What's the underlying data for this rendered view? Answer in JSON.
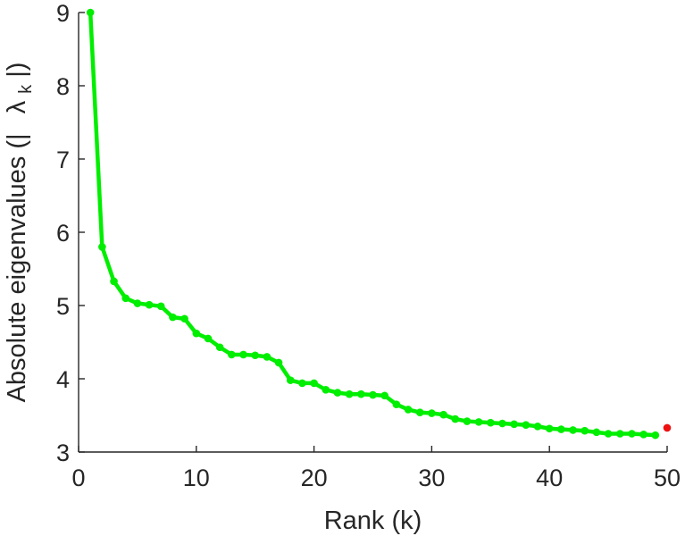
{
  "chart_data": {
    "type": "line",
    "title": "",
    "xlabel": "Rank (k)",
    "ylabel_parts": [
      "Absolute eigenvalues (|",
      "λ",
      "k",
      "|)"
    ],
    "xlim": [
      0,
      50
    ],
    "ylim": [
      3,
      9
    ],
    "xticks": [
      0,
      10,
      20,
      30,
      40,
      50
    ],
    "yticks": [
      3,
      4,
      5,
      6,
      7,
      8,
      9
    ],
    "grid": false,
    "legend": "none",
    "series": [
      {
        "color": "#00ee00",
        "x": [
          1,
          2,
          3,
          4,
          5,
          6,
          7,
          8,
          9,
          10,
          11,
          12,
          13,
          14,
          15,
          16,
          17,
          18,
          19,
          20,
          21,
          22,
          23,
          24,
          25,
          26,
          27,
          28,
          29,
          30,
          31,
          32,
          33,
          34,
          35,
          36,
          37,
          38,
          39,
          40,
          41,
          42,
          43,
          44,
          45,
          46,
          47,
          48,
          49
        ],
        "values": [
          9.0,
          5.8,
          5.33,
          5.1,
          5.03,
          5.01,
          4.99,
          4.84,
          4.82,
          4.62,
          4.55,
          4.43,
          4.33,
          4.33,
          4.32,
          4.3,
          4.22,
          3.98,
          3.94,
          3.94,
          3.85,
          3.81,
          3.79,
          3.79,
          3.78,
          3.77,
          3.65,
          3.58,
          3.54,
          3.53,
          3.51,
          3.45,
          3.42,
          3.41,
          3.4,
          3.39,
          3.38,
          3.37,
          3.35,
          3.32,
          3.31,
          3.3,
          3.29,
          3.27,
          3.25,
          3.25,
          3.25,
          3.24,
          3.23
        ]
      },
      {
        "color": "#ee1111",
        "x": [
          50
        ],
        "values": [
          3.33
        ]
      }
    ]
  }
}
